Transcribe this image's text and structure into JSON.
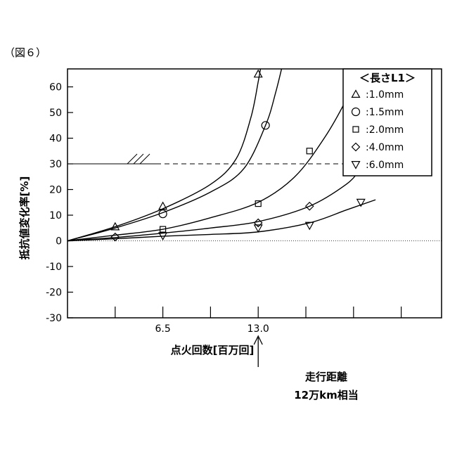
{
  "figure_label": "（図６）",
  "annotation": {
    "arrow_label_line1": "走行距離",
    "arrow_label_line2": "12万km相当"
  },
  "chart_data": {
    "type": "scatter",
    "title": "",
    "xlabel": "点火回数[百万回]",
    "ylabel": "抵抗値変化率[%]",
    "xlim": [
      0,
      25.5
    ],
    "ylim": [
      -30,
      67
    ],
    "x_ticks_labeled": [
      {
        "value": 6.5,
        "label": "6.5"
      },
      {
        "value": 13.0,
        "label": "13.0"
      }
    ],
    "x_ticks_minor": [
      3.25,
      6.5,
      9.75,
      13.0,
      16.25,
      19.5,
      22.75
    ],
    "y_ticks": [
      60,
      50,
      40,
      30,
      20,
      10,
      0,
      -10,
      -20,
      -30
    ],
    "threshold": {
      "y": 30
    },
    "arrow_x": 13.0,
    "legend": {
      "title": "＜長さL1＞",
      "placement": "top-right"
    },
    "series": [
      {
        "name": ":1.0mm",
        "marker": "triangle-up",
        "points": [
          [
            3.25,
            5.5
          ],
          [
            6.5,
            13.5
          ],
          [
            13.0,
            65.0
          ]
        ],
        "curve": [
          [
            0,
            0
          ],
          [
            3.25,
            5.5
          ],
          [
            6.5,
            12.5
          ],
          [
            9.75,
            22
          ],
          [
            11.5,
            32
          ],
          [
            12.5,
            48
          ],
          [
            13.0,
            62
          ],
          [
            13.3,
            72
          ]
        ]
      },
      {
        "name": ":1.5mm",
        "marker": "circle",
        "points": [
          [
            6.5,
            10.5
          ],
          [
            13.5,
            45.0
          ]
        ],
        "curve": [
          [
            0,
            0
          ],
          [
            3.25,
            5
          ],
          [
            6.5,
            11
          ],
          [
            9.75,
            19
          ],
          [
            12.0,
            28
          ],
          [
            13.5,
            45
          ],
          [
            14.2,
            58
          ],
          [
            14.8,
            72
          ]
        ]
      },
      {
        "name": ":2.0mm",
        "marker": "square",
        "points": [
          [
            6.5,
            4.5
          ],
          [
            13.0,
            14.5
          ],
          [
            16.5,
            35.0
          ]
        ],
        "curve": [
          [
            0,
            0
          ],
          [
            3.25,
            2.2
          ],
          [
            6.5,
            4.5
          ],
          [
            9.75,
            9
          ],
          [
            13.0,
            15
          ],
          [
            15.5,
            25
          ],
          [
            17.5,
            40
          ],
          [
            19.0,
            55
          ],
          [
            20.0,
            68
          ]
        ]
      },
      {
        "name": ":4.0mm",
        "marker": "diamond",
        "points": [
          [
            3.25,
            1.5
          ],
          [
            13.0,
            7.0
          ],
          [
            16.5,
            13.5
          ],
          [
            20.0,
            28.0
          ]
        ],
        "curve": [
          [
            0,
            0
          ],
          [
            3.25,
            1.3
          ],
          [
            6.5,
            3
          ],
          [
            9.75,
            5
          ],
          [
            13.0,
            7.5
          ],
          [
            16.5,
            13.5
          ],
          [
            19.0,
            22
          ],
          [
            20.0,
            28
          ],
          [
            20.8,
            32
          ]
        ]
      },
      {
        "name": ":6.0mm",
        "marker": "triangle-down",
        "points": [
          [
            6.5,
            2.0
          ],
          [
            13.0,
            5.0
          ],
          [
            16.5,
            6.0
          ],
          [
            20.0,
            15.0
          ]
        ],
        "curve": [
          [
            0,
            0
          ],
          [
            3.25,
            0.8
          ],
          [
            6.5,
            1.8
          ],
          [
            9.75,
            2.5
          ],
          [
            13.0,
            3.5
          ],
          [
            16.5,
            7
          ],
          [
            19.0,
            12
          ],
          [
            21.0,
            16
          ]
        ]
      }
    ]
  }
}
